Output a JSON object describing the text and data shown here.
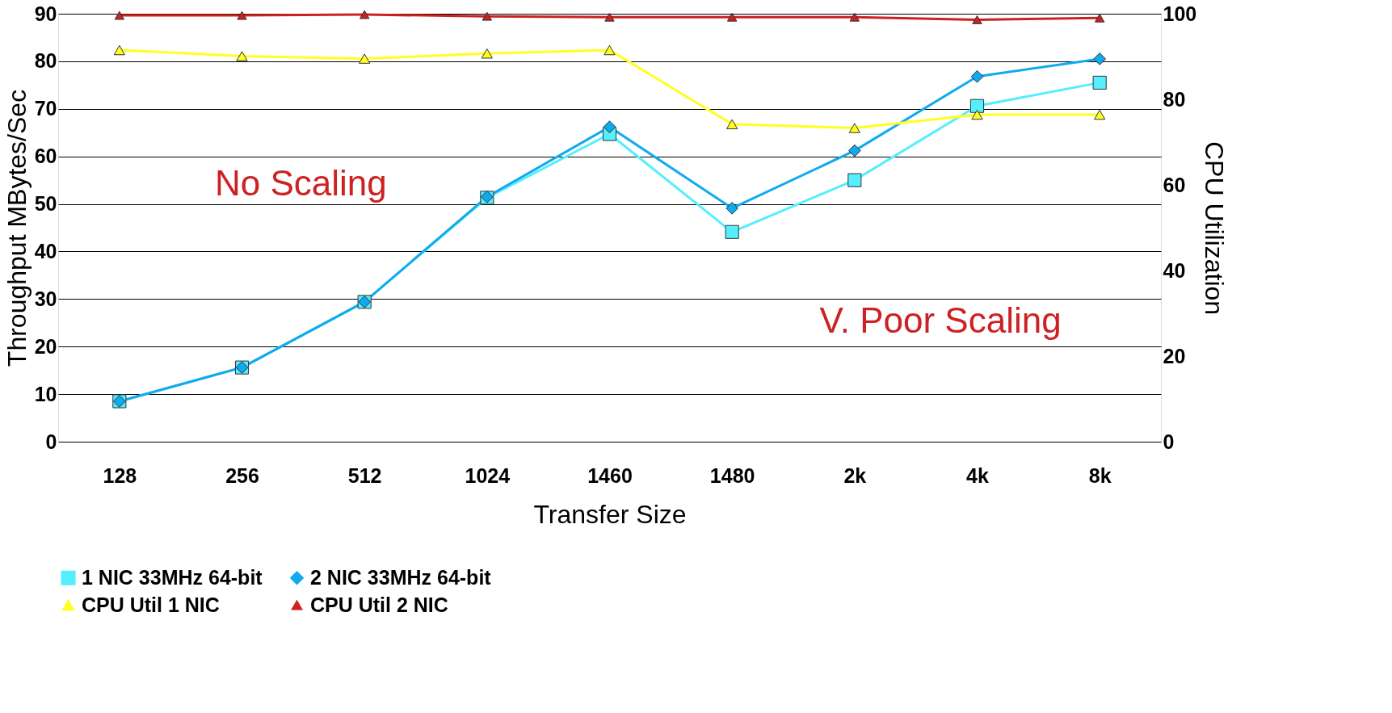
{
  "chart_data": {
    "type": "line",
    "xlabel": "Transfer Size",
    "ylabel": "Throughput MBytes/Sec",
    "y2label": "CPU Utilization",
    "categories": [
      "128",
      "256",
      "512",
      "1024",
      "1460",
      "1480",
      "2k",
      "4k",
      "8k"
    ],
    "ylim": [
      0,
      90
    ],
    "yticks": [
      0,
      10,
      20,
      30,
      40,
      50,
      60,
      70,
      80,
      90
    ],
    "y2lim": [
      0,
      100
    ],
    "y2ticks": [
      0,
      20,
      40,
      60,
      80,
      100
    ],
    "grid": "y",
    "legend": "bottom",
    "line_style": "solid",
    "series": [
      {
        "name": "1 NIC 33MHz 64-bit",
        "color": "#55eeff",
        "marker": "square",
        "values": [
          8.5,
          15.6,
          29.4,
          51.3,
          64.7,
          44.1,
          55,
          70.6,
          75.5
        ]
      },
      {
        "name": "2 NIC 33MHz 64-bit",
        "color": "#11aaee",
        "marker": "diamond",
        "values": [
          8.5,
          15.6,
          29.4,
          51.5,
          66.2,
          49.1,
          61.2,
          76.8,
          80.5
        ]
      },
      {
        "name": "CPU Util 1 NIC",
        "color": "#ffff22",
        "marker": "triangle",
        "axis": "y2",
        "values": [
          91.5,
          90.1,
          89.5,
          90.7,
          91.5,
          74.2,
          73.3,
          76.4,
          76.4
        ]
      },
      {
        "name": "CPU Util 2 NIC",
        "color": "#cc2222",
        "marker": "triangle",
        "axis": "y2",
        "values": [
          99.6,
          99.6,
          99.8,
          99.4,
          99.2,
          99.2,
          99.2,
          98.6,
          99
        ]
      }
    ],
    "annotations": [
      "No Scaling",
      "V. Poor Scaling"
    ]
  }
}
